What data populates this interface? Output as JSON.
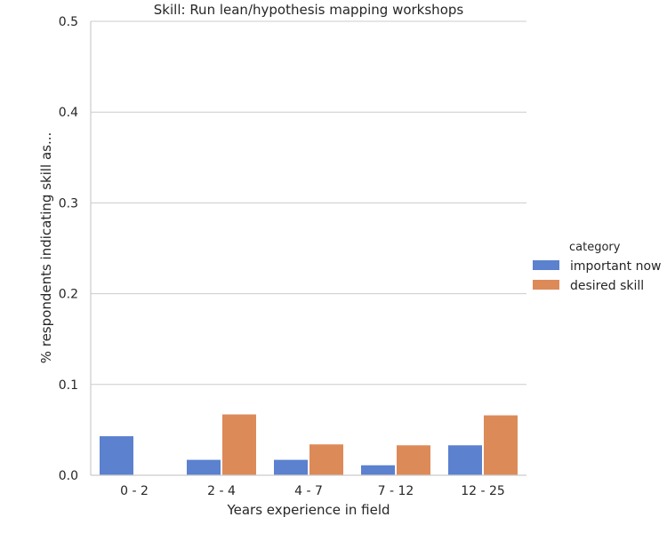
{
  "chart_data": {
    "type": "bar",
    "title": "Skill: Run lean/hypothesis mapping workshops",
    "xlabel": "Years experience in field",
    "ylabel": "% respondents indicating skill as...",
    "categories": [
      "0 - 2",
      "2 - 4",
      "4 - 7",
      "7 - 12",
      "12 - 25"
    ],
    "series": [
      {
        "name": "important now",
        "color": "#5b81cf",
        "values": [
          0.043,
          0.017,
          0.017,
          0.011,
          0.033
        ]
      },
      {
        "name": "desired skill",
        "color": "#dd8a59",
        "values": [
          0.0,
          0.067,
          0.034,
          0.033,
          0.066
        ]
      }
    ],
    "ylim": [
      0,
      0.5
    ],
    "yticks": [
      "0.0",
      "0.1",
      "0.2",
      "0.3",
      "0.4",
      "0.5"
    ],
    "grid": "horizontal",
    "legend": {
      "title": "category",
      "placement": "right"
    }
  }
}
